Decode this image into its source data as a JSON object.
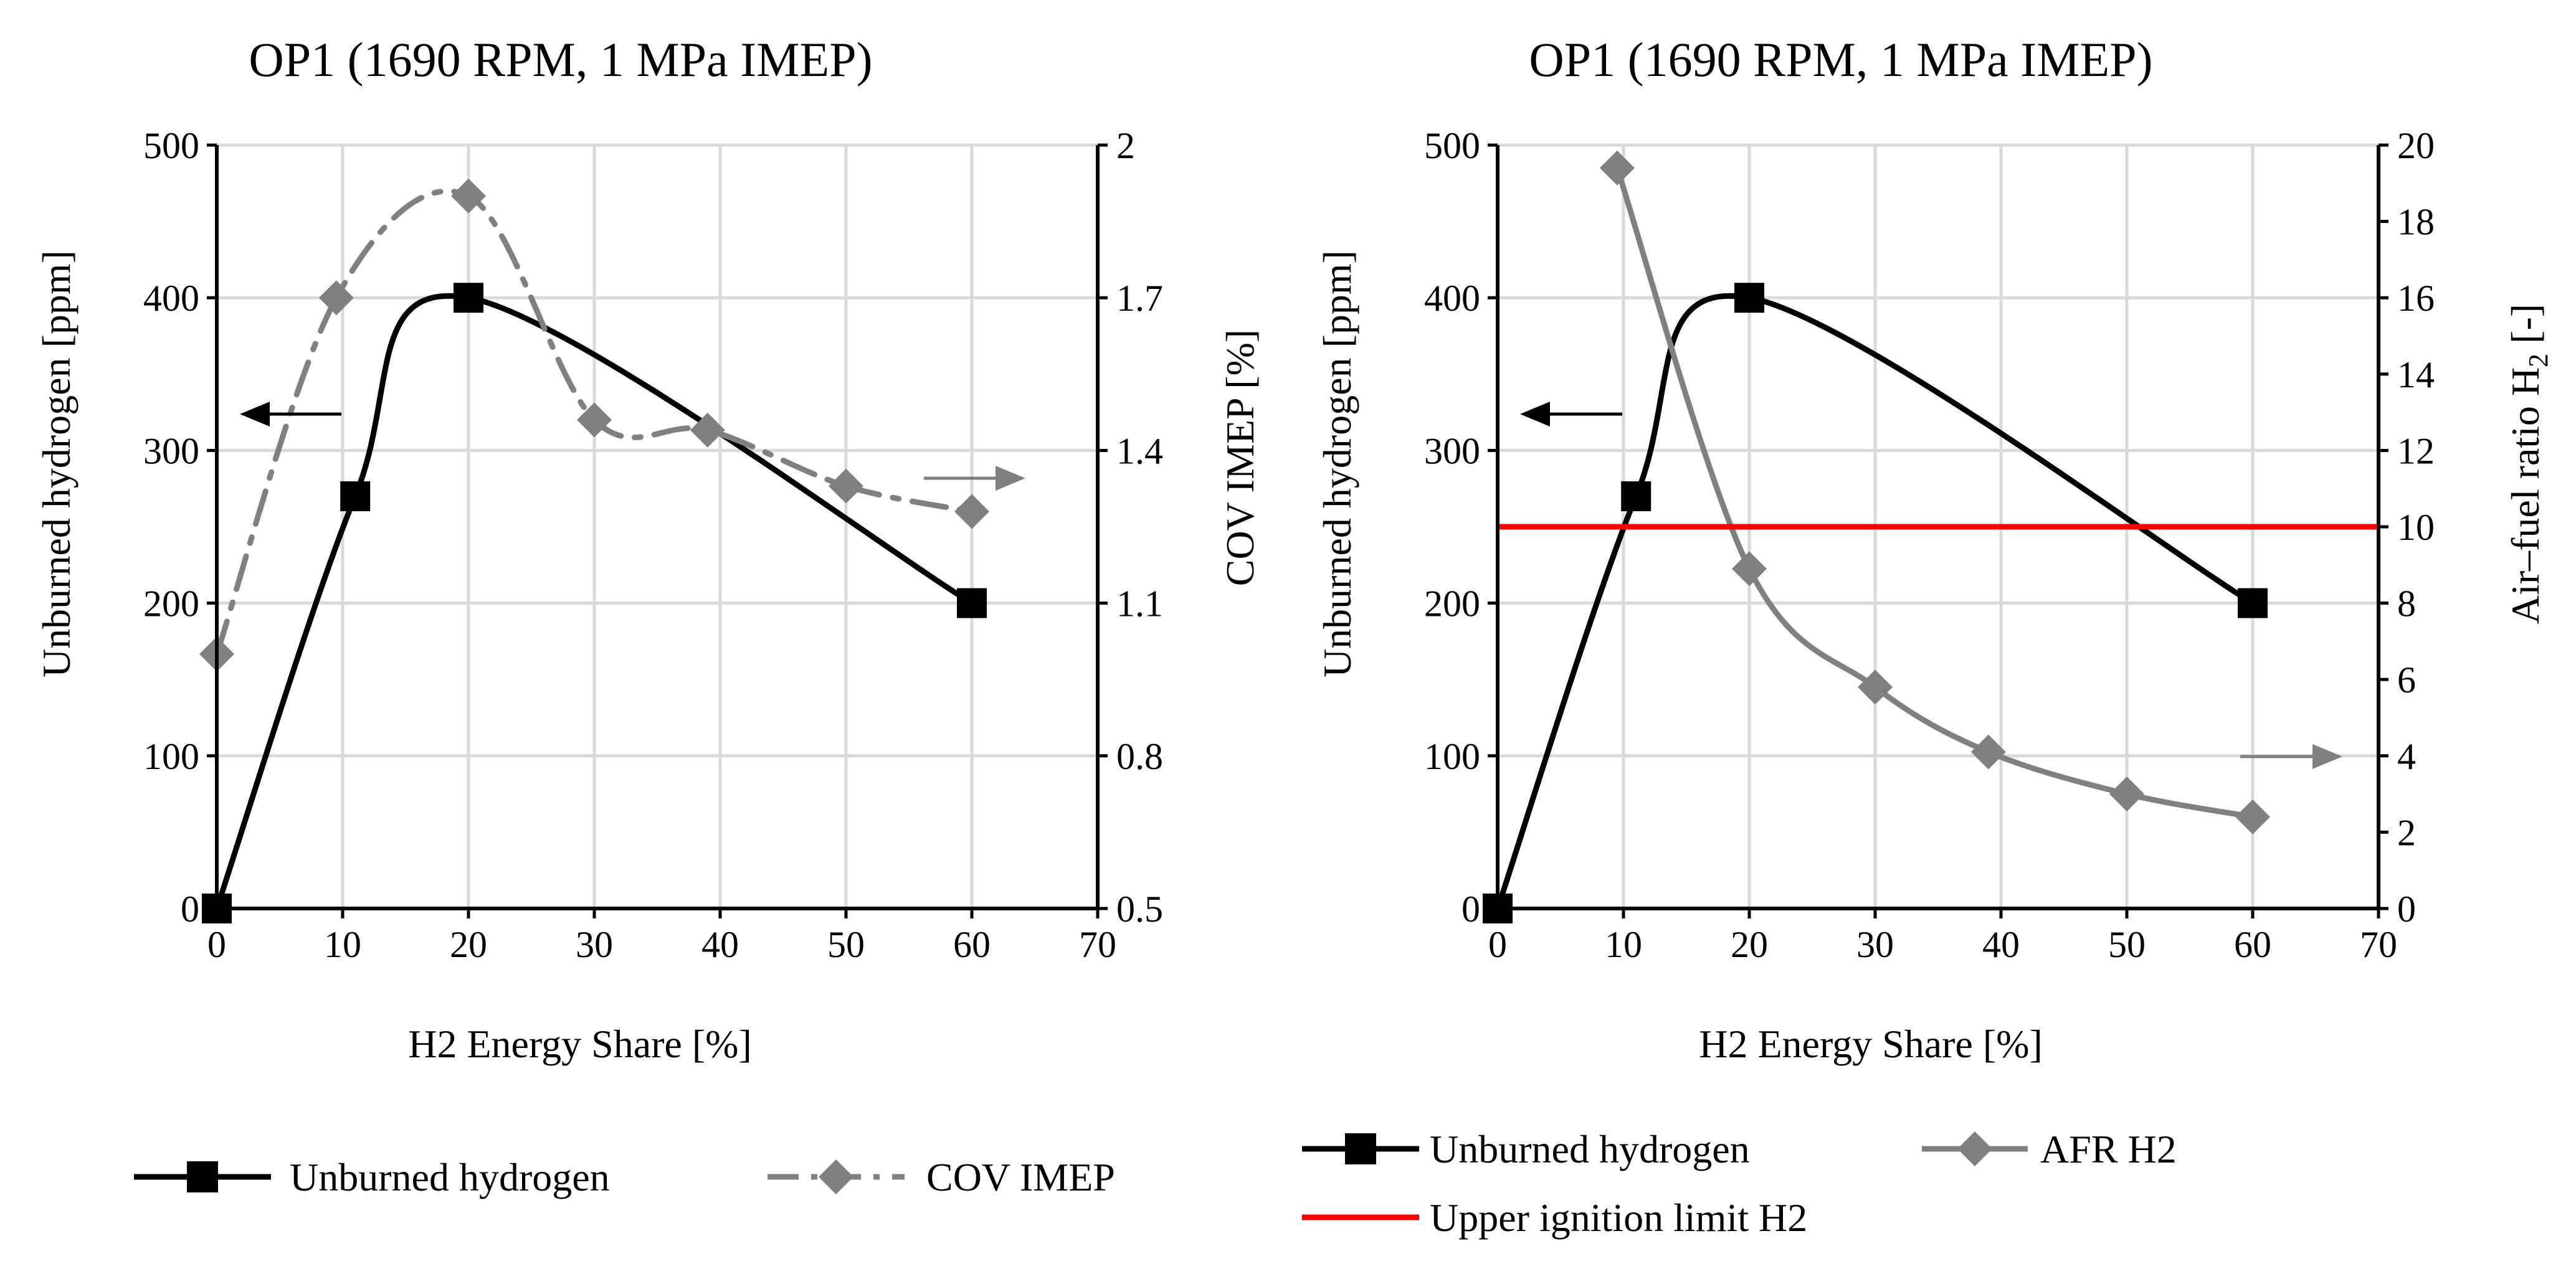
{
  "chart_data": [
    {
      "type": "line",
      "title": "OP1 (1690 RPM, 1 MPa IMEP)",
      "xlabel": "H2 Energy Share [%]",
      "ylabel": "Unburned hydrogen [ppm]",
      "y2label": "COV IMEP [%]",
      "xlim": [
        0,
        70
      ],
      "ylim": [
        0,
        500
      ],
      "y2lim": [
        0.5,
        2.0
      ],
      "xticks": [
        "0",
        "10",
        "20",
        "30",
        "40",
        "50",
        "60",
        "70"
      ],
      "yticks": [
        "0",
        "100",
        "200",
        "300",
        "400",
        "500"
      ],
      "y2ticks": [
        "0.5",
        "0.8",
        "1.1",
        "1.4",
        "1.7",
        "2"
      ],
      "grid": true,
      "legend_position": "bottom",
      "series": [
        {
          "name": "Unburned hydrogen",
          "axis": "left",
          "color": "#000000",
          "style": "solid",
          "marker": "square",
          "x": [
            0,
            11,
            20,
            60
          ],
          "y": [
            0,
            270,
            400,
            200
          ]
        },
        {
          "name": "COV IMEP",
          "axis": "right",
          "color": "#808080",
          "style": "dashdot",
          "marker": "diamond",
          "x": [
            0,
            9.5,
            20,
            30,
            39,
            50,
            60
          ],
          "y": [
            1.0,
            1.7,
            1.9,
            1.46,
            1.44,
            1.33,
            1.28
          ]
        }
      ],
      "annotations": [
        {
          "type": "arrow",
          "direction": "left",
          "meaning": "Unburned hydrogen uses left axis"
        },
        {
          "type": "arrow",
          "direction": "right",
          "meaning": "COV IMEP uses right axis"
        }
      ]
    },
    {
      "type": "line",
      "title": "OP1 (1690 RPM, 1 MPa IMEP)",
      "xlabel": "H2 Energy Share [%]",
      "ylabel": "Unburned hydrogen [ppm]",
      "y2label_main": "Air–fuel ratio H",
      "y2label_sub": "2",
      "y2label_tail": " [-]",
      "xlim": [
        0,
        70
      ],
      "ylim": [
        0,
        500
      ],
      "y2lim": [
        0,
        20
      ],
      "xticks": [
        "0",
        "10",
        "20",
        "30",
        "40",
        "50",
        "60",
        "70"
      ],
      "yticks": [
        "0",
        "100",
        "200",
        "300",
        "400",
        "500"
      ],
      "y2ticks": [
        "0",
        "2",
        "4",
        "6",
        "8",
        "10",
        "12",
        "14",
        "16",
        "18",
        "20"
      ],
      "grid": true,
      "legend_position": "bottom",
      "series": [
        {
          "name": "Unburned hydrogen",
          "axis": "left",
          "color": "#000000",
          "style": "solid",
          "marker": "square",
          "x": [
            0,
            11,
            20,
            60
          ],
          "y": [
            0,
            270,
            400,
            200
          ]
        },
        {
          "name": "AFR H2",
          "axis": "right",
          "color": "#808080",
          "style": "solid",
          "marker": "diamond",
          "x": [
            9.5,
            20,
            30,
            39,
            50,
            60
          ],
          "y": [
            19.4,
            8.9,
            5.8,
            4.1,
            3.0,
            2.4
          ]
        },
        {
          "name": "Upper ignition limit H2",
          "axis": "right",
          "color": "#ff0000",
          "style": "solid",
          "marker": "none",
          "x": [
            0,
            70
          ],
          "y": [
            10,
            10
          ]
        }
      ],
      "annotations": [
        {
          "type": "arrow",
          "direction": "left",
          "meaning": "Unburned hydrogen uses left axis"
        },
        {
          "type": "arrow",
          "direction": "right",
          "meaning": "AFR H2 uses right axis"
        }
      ]
    }
  ]
}
